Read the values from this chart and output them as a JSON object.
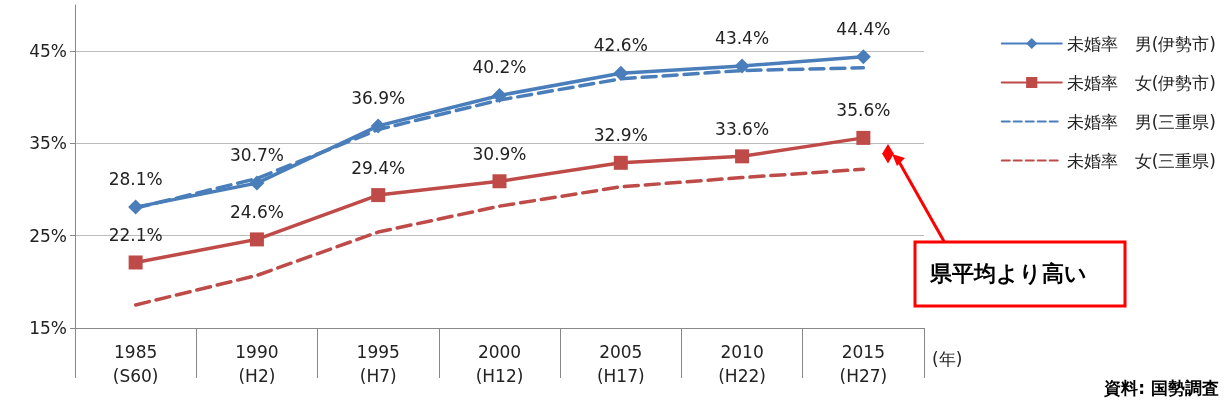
{
  "chart_data": {
    "type": "line",
    "categories": [
      "1985\n(S60)",
      "1990\n(H2)",
      "1995\n(H7)",
      "2000\n(H12)",
      "2005\n(H17)",
      "2010\n(H22)",
      "2015\n(H27)"
    ],
    "xlabel": "(年)",
    "ylim": [
      15,
      50
    ],
    "yticks": [
      {
        "value": 15,
        "label": "15%"
      },
      {
        "value": 25,
        "label": "25%"
      },
      {
        "value": 35,
        "label": "35%"
      },
      {
        "value": 45,
        "label": "45%"
      }
    ],
    "grid": "y",
    "legend": "right",
    "series": [
      {
        "name": "未婚率　男(伊勢市)",
        "color": "#4a7ebb",
        "marker": "diamond",
        "line_style": "solid",
        "values": [
          28.1,
          30.7,
          36.9,
          40.2,
          42.6,
          43.4,
          44.4
        ],
        "value_labels": [
          "28.1%",
          "30.7%",
          "36.9%",
          "40.2%",
          "42.6%",
          "43.4%",
          "44.4%"
        ]
      },
      {
        "name": "未婚率　女(伊勢市)",
        "color": "#be4b48",
        "marker": "square",
        "line_style": "solid",
        "values": [
          22.1,
          24.6,
          29.4,
          30.9,
          32.9,
          33.6,
          35.6
        ],
        "value_labels": [
          "22.1%",
          "24.6%",
          "29.4%",
          "30.9%",
          "32.9%",
          "33.6%",
          "35.6%"
        ]
      },
      {
        "name": "未婚率　男(三重県)",
        "color": "#4a7ebb",
        "marker": "none",
        "line_style": "dashed",
        "values": [
          28.0,
          31.2,
          36.5,
          39.7,
          42.0,
          42.9,
          43.2
        ]
      },
      {
        "name": "未婚率　女(三重県)",
        "color": "#be4b48",
        "marker": "none",
        "line_style": "dashed",
        "values": [
          17.5,
          20.7,
          25.4,
          28.2,
          30.3,
          31.3,
          32.2
        ]
      }
    ],
    "annotations": [
      "県平均より高い",
      "資料: 国勢調査"
    ]
  }
}
